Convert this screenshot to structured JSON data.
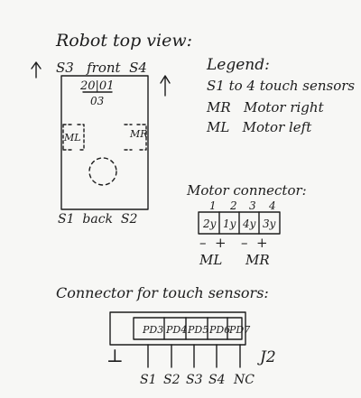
{
  "title": "Robot top view:",
  "robot": {
    "front_label": "S3   front  S4",
    "back_label": "S1  back  S2",
    "marking_top": "20|01",
    "marking_bottom": "03",
    "motor_left": "ML",
    "motor_right": "MR"
  },
  "legend": {
    "heading": "Legend:",
    "lines": [
      "S1 to 4 touch sensors",
      "MR   Motor right",
      "ML   Motor left"
    ]
  },
  "motor_connector": {
    "title": "Motor connector:",
    "pins": [
      "1",
      "2",
      "3",
      "4"
    ],
    "wires": [
      "2y",
      "1y",
      "4y",
      "3y"
    ],
    "polarity": [
      "–  +",
      "–  +"
    ],
    "motors": [
      "ML",
      "MR"
    ]
  },
  "touch_connector": {
    "title": "Connector for touch sensors:",
    "ports": [
      "PD3",
      "PD4",
      "PD5",
      "PD6",
      "PD7"
    ],
    "ground_symbol": "⊥",
    "name": "J2",
    "signals": [
      "S1",
      "S2",
      "S3",
      "S4",
      "NC"
    ]
  }
}
